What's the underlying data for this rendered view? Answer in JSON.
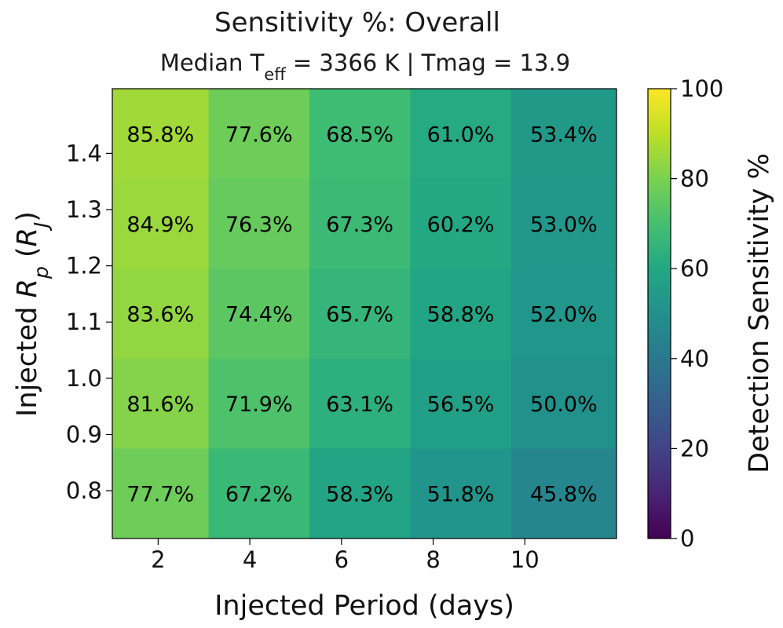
{
  "chart_data": {
    "type": "heatmap",
    "title": "Sensitivity %: Overall",
    "subtitle_parts": {
      "prefix": "Median T",
      "subscript": "eff",
      "suffix": " = 3366 K | Tmag = 13.9"
    },
    "xlabel": "Injected Period (days)",
    "ylabel_parts": {
      "prefix": "Injected ",
      "var": "R",
      "var_sub": "p",
      "unit_open": " (",
      "unit": "R",
      "unit_sub": "J",
      "unit_close": ")"
    },
    "x_centers": [
      2,
      4.2,
      6.4,
      8.6,
      10.8
    ],
    "x_range": [
      1,
      12
    ],
    "x_ticks": [
      2,
      4,
      6,
      8,
      10
    ],
    "x_tick_labels": [
      "2",
      "4",
      "6",
      "8",
      "10"
    ],
    "y_centers": [
      1.435,
      1.275,
      1.115,
      0.955,
      0.795
    ],
    "y_range": [
      0.715,
      1.515
    ],
    "y_ticks": [
      1.4,
      1.3,
      1.2,
      1.1,
      1.0,
      0.9,
      0.8
    ],
    "y_tick_labels": [
      "1.4",
      "1.3",
      "1.2",
      "1.1",
      "1.0",
      "0.9",
      "0.8"
    ],
    "values": [
      [
        85.8,
        77.6,
        68.5,
        61.0,
        53.4
      ],
      [
        84.9,
        76.3,
        67.3,
        60.2,
        53.0
      ],
      [
        83.6,
        74.4,
        65.7,
        58.8,
        52.0
      ],
      [
        81.6,
        71.9,
        63.1,
        56.5,
        50.0
      ],
      [
        77.7,
        67.2,
        58.3,
        51.8,
        45.8
      ]
    ],
    "cell_labels": [
      [
        "85.8%",
        "77.6%",
        "68.5%",
        "61.0%",
        "53.4%"
      ],
      [
        "84.9%",
        "76.3%",
        "67.3%",
        "60.2%",
        "53.0%"
      ],
      [
        "83.6%",
        "74.4%",
        "65.7%",
        "58.8%",
        "52.0%"
      ],
      [
        "81.6%",
        "71.9%",
        "63.1%",
        "56.5%",
        "50.0%"
      ],
      [
        "77.7%",
        "67.2%",
        "58.3%",
        "51.8%",
        "45.8%"
      ]
    ],
    "colorbar": {
      "label": "Detection Sensitivity %",
      "range": [
        0,
        100
      ],
      "ticks": [
        0,
        20,
        40,
        60,
        80,
        100
      ],
      "tick_labels": [
        "0",
        "20",
        "40",
        "60",
        "80",
        "100"
      ],
      "colormap": "viridis"
    }
  }
}
